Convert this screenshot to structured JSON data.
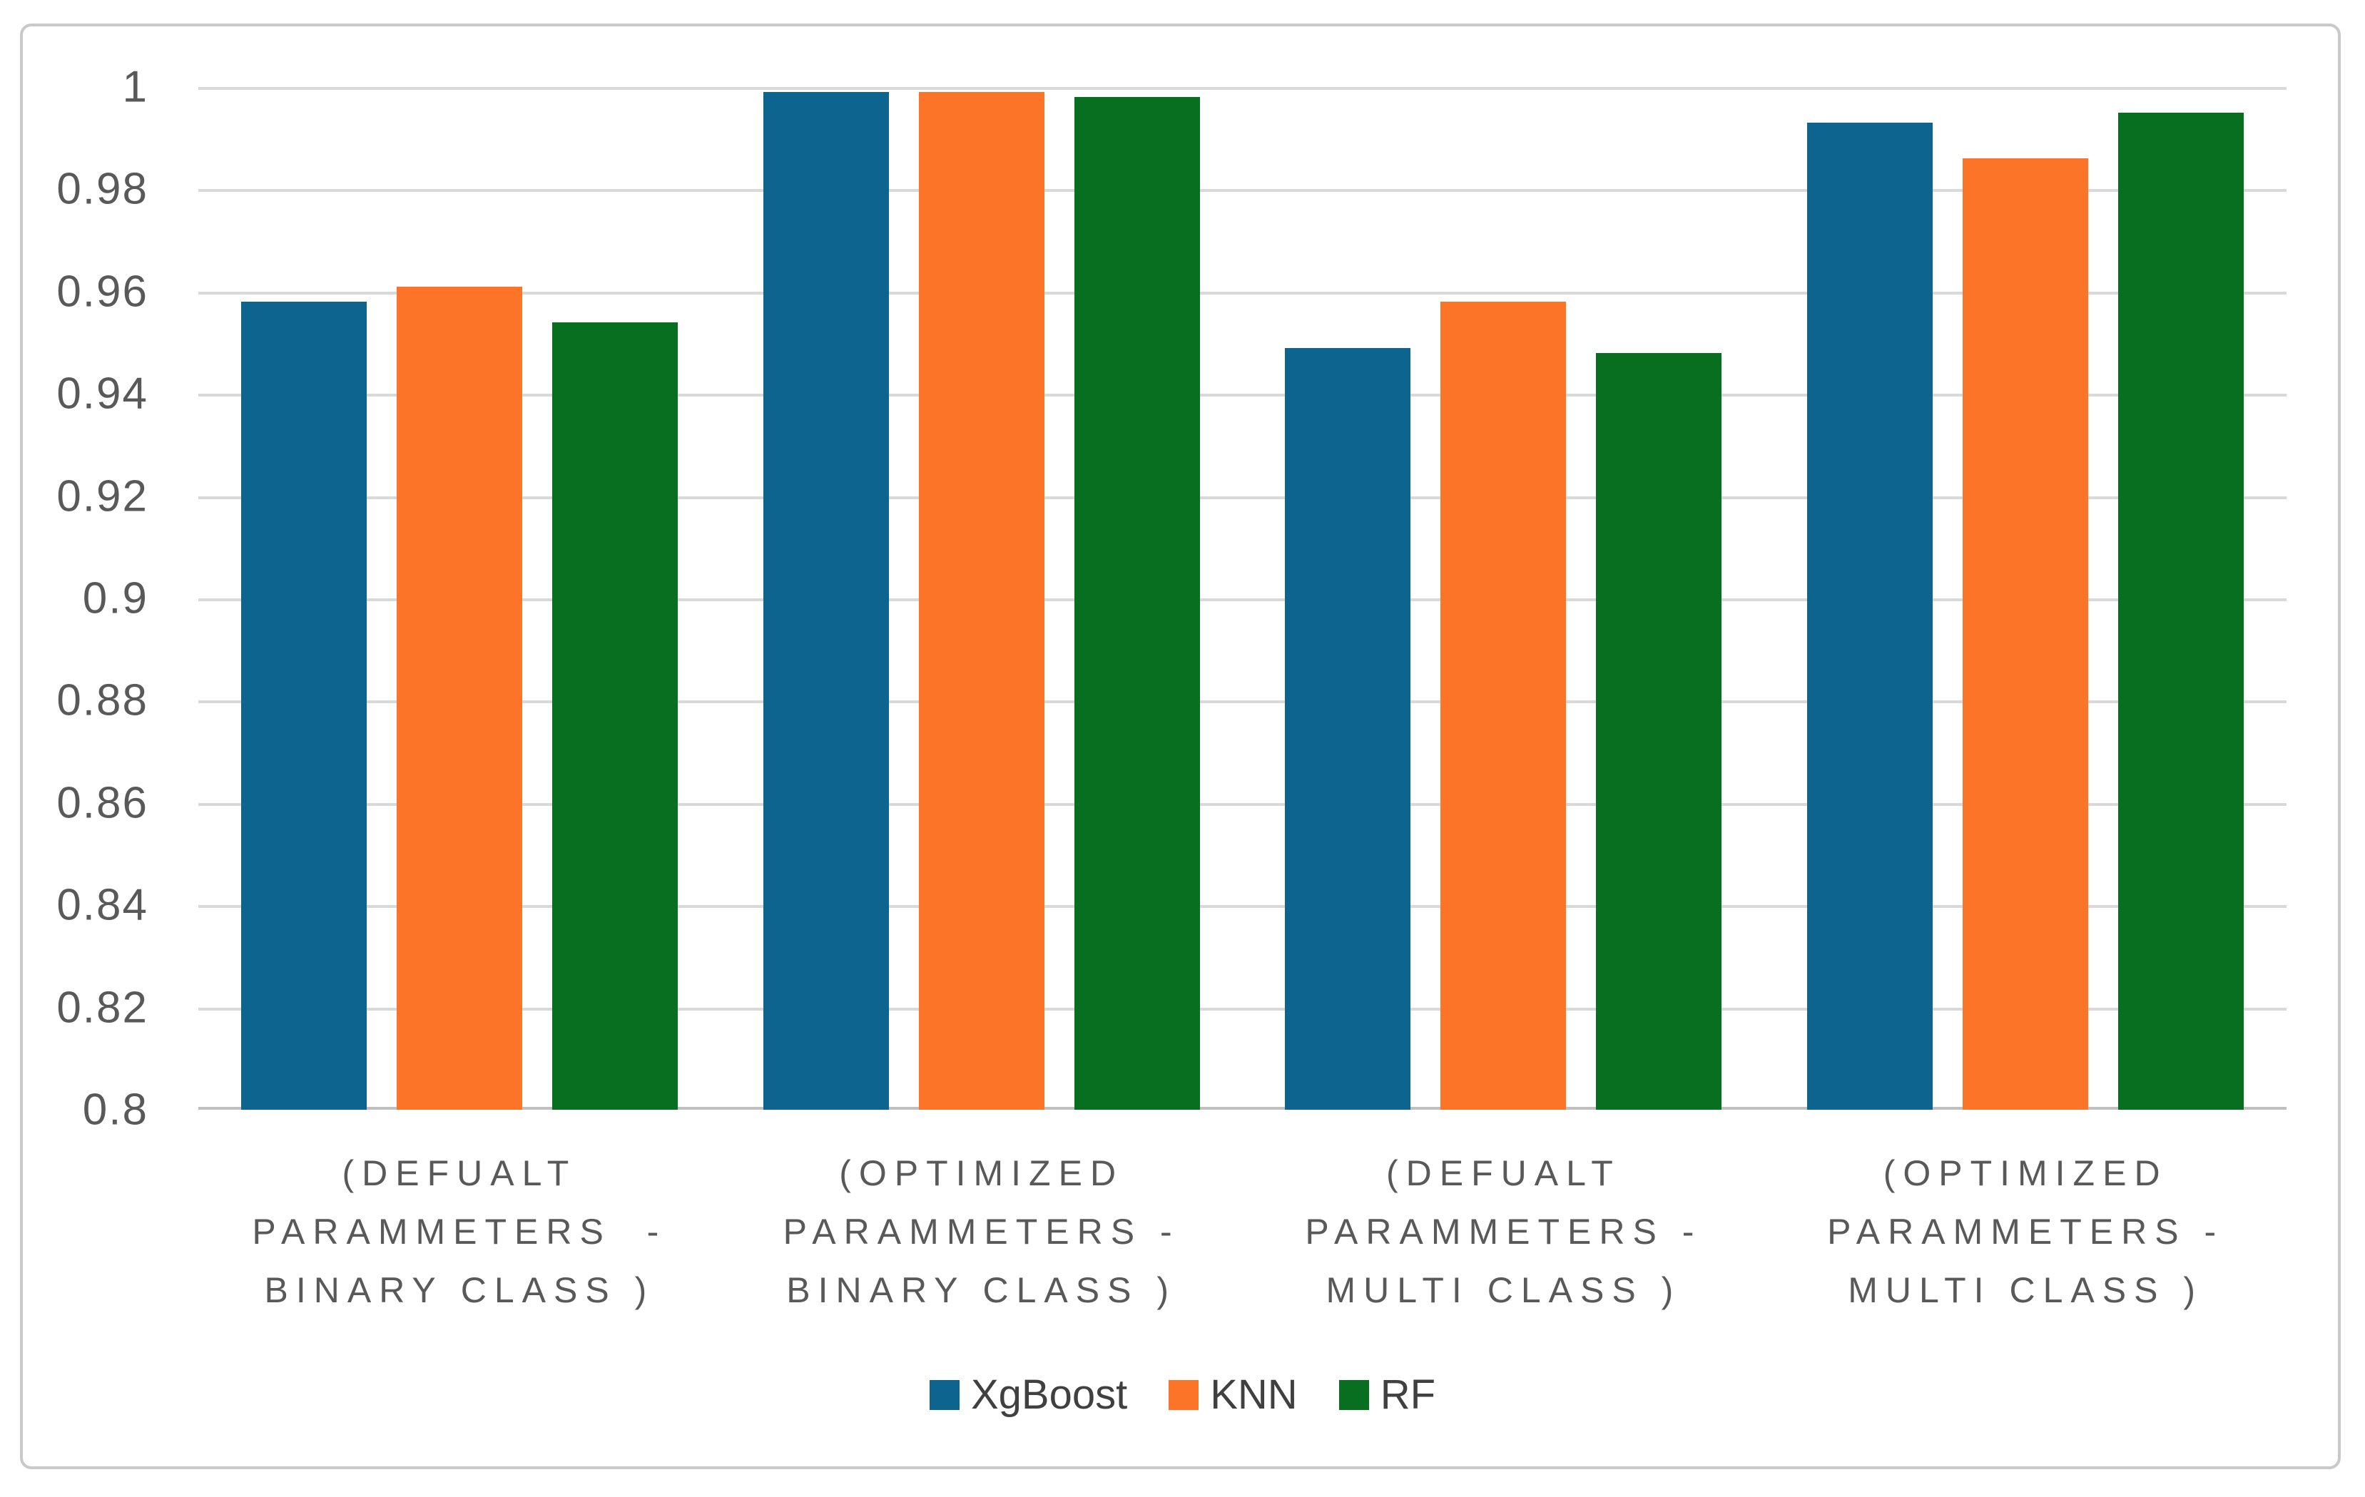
{
  "figure": {
    "kind": "excel-style-clustered-bar-chart",
    "background": "#ffffff",
    "border_color": "#c9c9c9"
  },
  "chart_data": {
    "type": "bar",
    "title": "",
    "xlabel": "",
    "ylabel": "",
    "categories": [
      "(DEFUALT PARAMMETERS  - BINARY CLASS )",
      "(OPTIMIZED PARAMMETERS - BINARY CLASS )",
      "(DEFUALT PARAMMETERS - MULTI CLASS )",
      "(OPTIMIZED PARAMMETERS - MULTI CLASS )"
    ],
    "category_lines": [
      [
        "(DEFUALT",
        "PARAMMETERS  -",
        "BINARY CLASS )"
      ],
      [
        "(OPTIMIZED",
        "PARAMMETERS -",
        "BINARY CLASS )"
      ],
      [
        "(DEFUALT",
        "PARAMMETERS -",
        "MULTI CLASS )"
      ],
      [
        "(OPTIMIZED",
        "PARAMMETERS -",
        "MULTI CLASS )"
      ]
    ],
    "series": [
      {
        "name": "XgBoost",
        "color": "#0d648e",
        "values": [
          0.958,
          0.999,
          0.949,
          0.993
        ]
      },
      {
        "name": "KNN",
        "color": "#fb7428",
        "values": [
          0.961,
          0.999,
          0.958,
          0.986
        ]
      },
      {
        "name": "RF",
        "color": "#086e20",
        "values": [
          0.954,
          0.998,
          0.948,
          0.995
        ]
      }
    ],
    "ylim": [
      0.8,
      1.0
    ],
    "yticks": [
      1,
      0.98,
      0.96,
      0.94,
      0.92,
      0.9,
      0.88,
      0.86,
      0.84,
      0.82,
      0.8
    ],
    "ytick_labels": [
      "1",
      "0.98",
      "0.96",
      "0.94",
      "0.92",
      "0.9",
      "0.88",
      "0.86",
      "0.84",
      "0.82",
      "0.8"
    ],
    "grid": true,
    "gridline_color": "#d9d9d9",
    "axisline_color": "#bfbfbf",
    "text_color": "#595959",
    "legend_position": "bottom",
    "legend_labels": [
      "XgBoost",
      "KNN",
      "RF"
    ]
  }
}
